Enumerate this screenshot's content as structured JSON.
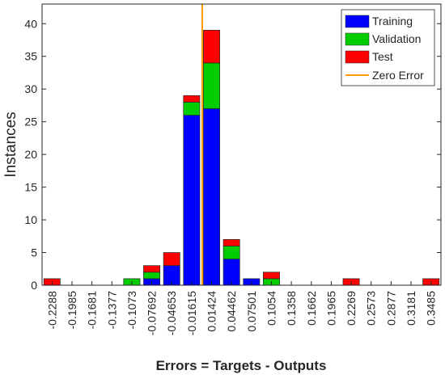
{
  "chart_data": {
    "type": "bar",
    "stacked": true,
    "xlabel": "Errors = Targets - Outputs",
    "ylabel": "Instances",
    "ylim": [
      0,
      43
    ],
    "y_ticks": [
      0,
      5,
      10,
      15,
      20,
      25,
      30,
      35,
      40
    ],
    "categories": [
      "-0.2288",
      "-0.1985",
      "-0.1681",
      "-0.1377",
      "-0.1073",
      "-0.07692",
      "-0.04653",
      "-0.01615",
      "0.01424",
      "0.04462",
      "0.07501",
      "0.1054",
      "0.1358",
      "0.1662",
      "0.1965",
      "0.2269",
      "0.2573",
      "0.2877",
      "0.3181",
      "0.3485"
    ],
    "series": [
      {
        "name": "Training",
        "color": "#0000ff",
        "values": [
          0,
          0,
          0,
          0,
          0,
          1,
          3,
          26,
          27,
          4,
          1,
          0,
          0,
          0,
          0,
          0,
          0,
          0,
          0,
          0
        ]
      },
      {
        "name": "Validation",
        "color": "#00cc00",
        "values": [
          0,
          0,
          0,
          0,
          1,
          1,
          0,
          2,
          7,
          2,
          0,
          1,
          0,
          0,
          0,
          0,
          0,
          0,
          0,
          0
        ]
      },
      {
        "name": "Test",
        "color": "#ff0000",
        "values": [
          1,
          0,
          0,
          0,
          0,
          1,
          2,
          1,
          5,
          1,
          0,
          1,
          0,
          0,
          0,
          1,
          0,
          0,
          0,
          1
        ]
      }
    ],
    "zero_error": {
      "name": "Zero Error",
      "color": "#ff9900",
      "x": 0
    },
    "grid": false,
    "legend_position": "top-right"
  }
}
